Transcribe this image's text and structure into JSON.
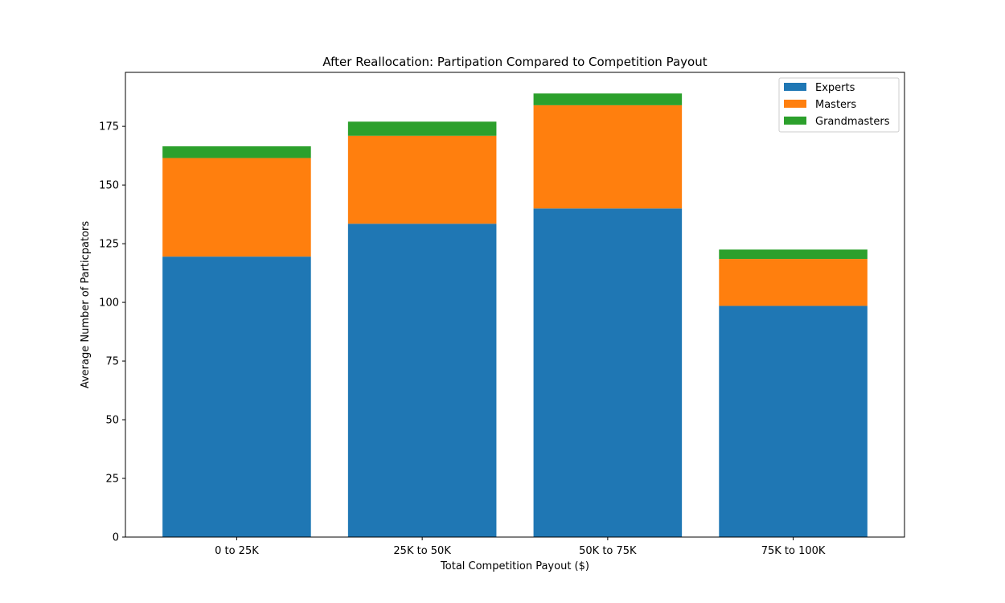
{
  "chart_data": {
    "type": "bar",
    "stacked": true,
    "title": "After Reallocation: Partipation Compared to Competition Payout",
    "xlabel": "Total Competition Payout ($)",
    "ylabel": "Average Number of Particpators",
    "categories": [
      "0 to 25K",
      "25K to 50K",
      "50K to 75K",
      "75K to 100K"
    ],
    "series": [
      {
        "name": "Experts",
        "color": "#1f77b4",
        "values": [
          119.5,
          133.5,
          140,
          98.5
        ]
      },
      {
        "name": "Masters",
        "color": "#ff7f0e",
        "values": [
          42,
          37.5,
          44,
          20
        ]
      },
      {
        "name": "Grandmasters",
        "color": "#2ca02c",
        "values": [
          5,
          6,
          5,
          4
        ]
      }
    ],
    "ylim": [
      0,
      198
    ],
    "yticks": [
      0,
      25,
      50,
      75,
      100,
      125,
      150,
      175
    ],
    "grid": false,
    "legend_position": "top-right"
  }
}
